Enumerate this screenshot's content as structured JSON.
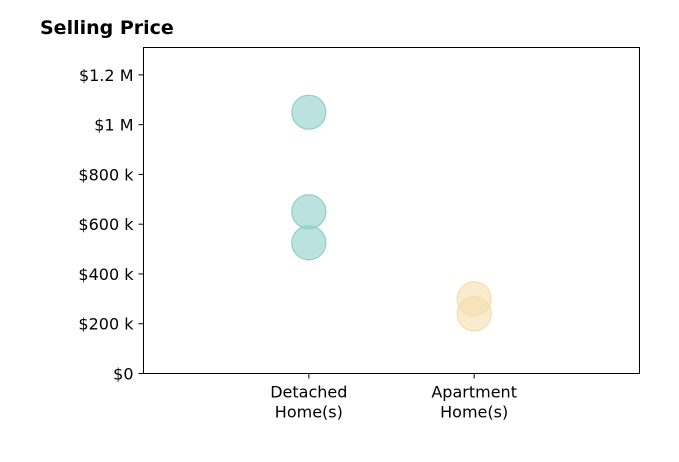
{
  "chart_data": {
    "type": "scatter",
    "title": "Selling Price",
    "xlabel": "",
    "ylabel": "",
    "categories": [
      "Detached\nHome(s)",
      "Apartment\nHome(s)"
    ],
    "x_category_positions": [
      1,
      2
    ],
    "xlim": [
      0,
      3
    ],
    "ylim": [
      0,
      1310000
    ],
    "yticks": [
      0,
      200000,
      400000,
      600000,
      800000,
      1000000,
      1200000
    ],
    "ytick_labels": [
      "$0",
      "$200 k",
      "$400 k",
      "$600 k",
      "$800 k",
      "$1 M",
      "$1.2 M"
    ],
    "grid": false,
    "legend": "none",
    "series": [
      {
        "category": "Detached\nHome(s)",
        "color": "#8ecfc9",
        "points": [
          1050000,
          650000,
          525000
        ]
      },
      {
        "category": "Apartment\nHome(s)",
        "color": "#f5deae",
        "points": [
          300000,
          240000
        ]
      }
    ]
  }
}
